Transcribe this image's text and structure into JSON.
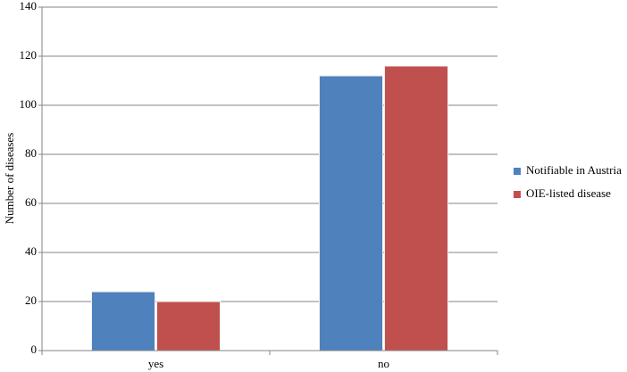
{
  "chart_data": {
    "type": "bar",
    "y_label": "Number of diseases",
    "categories": [
      "yes",
      "no"
    ],
    "series": [
      {
        "name": "Notifiable in Austria",
        "color": "#4f81bd",
        "values": [
          24,
          112
        ]
      },
      {
        "name": "OIE-listed disease",
        "color": "#c0504d",
        "values": [
          20,
          116
        ]
      }
    ],
    "ylim": [
      0,
      140
    ],
    "yticks": [
      0,
      20,
      40,
      60,
      80,
      100,
      120,
      140
    ],
    "grid": true,
    "legend": "right"
  }
}
